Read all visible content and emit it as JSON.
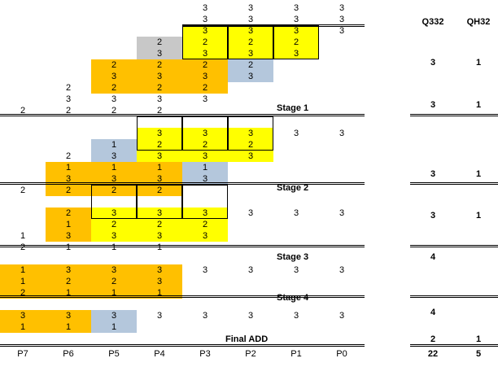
{
  "columns": [
    "P7",
    "P6",
    "P5",
    "P4",
    "P3",
    "P2",
    "P1",
    "P0"
  ],
  "right_headers": [
    "Q332",
    "QH32"
  ],
  "rows": [
    [
      [
        "",
        "n"
      ],
      [
        "",
        "n"
      ],
      [
        "",
        "n"
      ],
      [
        "",
        "n"
      ],
      [
        "3",
        "n"
      ],
      [
        "3",
        "n"
      ],
      [
        "3",
        "n"
      ],
      [
        "3",
        "n"
      ]
    ],
    [
      [
        "",
        "n"
      ],
      [
        "",
        "n"
      ],
      [
        "",
        "n"
      ],
      [
        "",
        "n"
      ],
      [
        "3",
        "n"
      ],
      [
        "3",
        "n"
      ],
      [
        "3",
        "n"
      ],
      [
        "3",
        "n"
      ]
    ],
    [
      [
        "",
        "n"
      ],
      [
        "",
        "n"
      ],
      [
        "",
        "n"
      ],
      [
        "",
        "n"
      ],
      [
        "3",
        "y"
      ],
      [
        "3",
        "y"
      ],
      [
        "3",
        "y"
      ],
      [
        "3",
        "n"
      ]
    ],
    [
      [
        "",
        "n"
      ],
      [
        "",
        "n"
      ],
      [
        "",
        "n"
      ],
      [
        "2",
        "g"
      ],
      [
        "2",
        "y"
      ],
      [
        "2",
        "y"
      ],
      [
        "2",
        "y"
      ],
      [
        "",
        "n"
      ]
    ],
    [
      [
        "",
        "n"
      ],
      [
        "",
        "n"
      ],
      [
        "",
        "n"
      ],
      [
        "3",
        "g"
      ],
      [
        "3",
        "y"
      ],
      [
        "3",
        "y"
      ],
      [
        "3",
        "y"
      ],
      [
        "",
        "n"
      ]
    ],
    [
      [
        "",
        "n"
      ],
      [
        "",
        "n"
      ],
      [
        "2",
        "o"
      ],
      [
        "2",
        "o"
      ],
      [
        "2",
        "o"
      ],
      [
        "2",
        "b"
      ],
      [
        "",
        "n"
      ],
      [
        "",
        "n"
      ]
    ],
    [
      [
        "",
        "n"
      ],
      [
        "",
        "n"
      ],
      [
        "3",
        "o"
      ],
      [
        "3",
        "o"
      ],
      [
        "3",
        "o"
      ],
      [
        "3",
        "b"
      ],
      [
        "",
        "n"
      ],
      [
        "",
        "n"
      ]
    ],
    [
      [
        "",
        "n"
      ],
      [
        "2",
        "n"
      ],
      [
        "2",
        "o"
      ],
      [
        "2",
        "o"
      ],
      [
        "2",
        "o"
      ],
      [
        "",
        "n"
      ],
      [
        "",
        "n"
      ],
      [
        "",
        "n"
      ]
    ],
    [
      [
        "",
        "n"
      ],
      [
        "3",
        "n"
      ],
      [
        "3",
        "n"
      ],
      [
        "3",
        "n"
      ],
      [
        "3",
        "n"
      ],
      [
        "",
        "n"
      ],
      [
        "",
        "n"
      ],
      [
        "",
        "n"
      ]
    ],
    [
      [
        "2",
        "n"
      ],
      [
        "2",
        "n"
      ],
      [
        "2",
        "n"
      ],
      [
        "2",
        "n"
      ],
      [
        "",
        "n"
      ],
      [
        "",
        "n"
      ],
      [
        "",
        "n"
      ],
      [
        "",
        "n"
      ]
    ],
    [
      [
        "",
        "n"
      ],
      [
        "",
        "n"
      ],
      [
        "",
        "n"
      ],
      [
        "3",
        "y"
      ],
      [
        "3",
        "y"
      ],
      [
        "3",
        "y"
      ],
      [
        "3",
        "n"
      ],
      [
        "3",
        "n"
      ]
    ],
    [
      [
        "",
        "n"
      ],
      [
        "",
        "n"
      ],
      [
        "1",
        "b"
      ],
      [
        "2",
        "y"
      ],
      [
        "2",
        "y"
      ],
      [
        "2",
        "y"
      ],
      [
        "",
        "n"
      ],
      [
        "",
        "n"
      ]
    ],
    [
      [
        "",
        "n"
      ],
      [
        "2",
        "n"
      ],
      [
        "3",
        "b"
      ],
      [
        "3",
        "y"
      ],
      [
        "3",
        "y"
      ],
      [
        "3",
        "y"
      ],
      [
        "",
        "n"
      ],
      [
        "",
        "n"
      ]
    ],
    [
      [
        "",
        "n"
      ],
      [
        "1",
        "o"
      ],
      [
        "1",
        "o"
      ],
      [
        "1",
        "o"
      ],
      [
        "1",
        "b"
      ],
      [
        "",
        "n"
      ],
      [
        "",
        "n"
      ],
      [
        "",
        "n"
      ]
    ],
    [
      [
        "",
        "n"
      ],
      [
        "3",
        "o"
      ],
      [
        "3",
        "o"
      ],
      [
        "3",
        "o"
      ],
      [
        "3",
        "b"
      ],
      [
        "",
        "n"
      ],
      [
        "",
        "n"
      ],
      [
        "",
        "n"
      ]
    ],
    [
      [
        "2",
        "n"
      ],
      [
        "2",
        "o"
      ],
      [
        "2",
        "o"
      ],
      [
        "2",
        "o"
      ],
      [
        "",
        "n"
      ],
      [
        "",
        "n"
      ],
      [
        "",
        "n"
      ],
      [
        "",
        "n"
      ]
    ],
    [
      [
        "",
        "n"
      ],
      [
        "2",
        "o"
      ],
      [
        "3",
        "y"
      ],
      [
        "3",
        "y"
      ],
      [
        "3",
        "y"
      ],
      [
        "3",
        "n"
      ],
      [
        "3",
        "n"
      ],
      [
        "3",
        "n"
      ]
    ],
    [
      [
        "",
        "n"
      ],
      [
        "1",
        "o"
      ],
      [
        "2",
        "y"
      ],
      [
        "2",
        "y"
      ],
      [
        "2",
        "y"
      ],
      [
        "",
        "n"
      ],
      [
        "",
        "n"
      ],
      [
        "",
        "n"
      ]
    ],
    [
      [
        "1",
        "n"
      ],
      [
        "3",
        "o"
      ],
      [
        "3",
        "y"
      ],
      [
        "3",
        "y"
      ],
      [
        "3",
        "y"
      ],
      [
        "",
        "n"
      ],
      [
        "",
        "n"
      ],
      [
        "",
        "n"
      ]
    ],
    [
      [
        "2",
        "n"
      ],
      [
        "1",
        "n"
      ],
      [
        "1",
        "n"
      ],
      [
        "1",
        "n"
      ],
      [
        "",
        "n"
      ],
      [
        "",
        "n"
      ],
      [
        "",
        "n"
      ],
      [
        "",
        "n"
      ]
    ],
    [
      [
        "1",
        "o"
      ],
      [
        "3",
        "o"
      ],
      [
        "3",
        "o"
      ],
      [
        "3",
        "o"
      ],
      [
        "3",
        "n"
      ],
      [
        "3",
        "n"
      ],
      [
        "3",
        "n"
      ],
      [
        "3",
        "n"
      ]
    ],
    [
      [
        "1",
        "o"
      ],
      [
        "2",
        "o"
      ],
      [
        "2",
        "o"
      ],
      [
        "3",
        "o"
      ],
      [
        "",
        "n"
      ],
      [
        "",
        "n"
      ],
      [
        "",
        "n"
      ],
      [
        "",
        "n"
      ]
    ],
    [
      [
        "2",
        "o"
      ],
      [
        "1",
        "o"
      ],
      [
        "1",
        "o"
      ],
      [
        "1",
        "o"
      ],
      [
        "",
        "n"
      ],
      [
        "",
        "n"
      ],
      [
        "",
        "n"
      ],
      [
        "",
        "n"
      ]
    ],
    [
      [
        "3",
        "o"
      ],
      [
        "3",
        "o"
      ],
      [
        "3",
        "b"
      ],
      [
        "3",
        "n"
      ],
      [
        "3",
        "n"
      ],
      [
        "3",
        "n"
      ],
      [
        "3",
        "n"
      ],
      [
        "3",
        "n"
      ]
    ],
    [
      [
        "1",
        "o"
      ],
      [
        "1",
        "o"
      ],
      [
        "1",
        "b"
      ],
      [
        "",
        "n"
      ],
      [
        "",
        "n"
      ],
      [
        "",
        "n"
      ],
      [
        "",
        "n"
      ],
      [
        "",
        "n"
      ]
    ]
  ],
  "stage_labels": [
    {
      "row": 7,
      "text": "Stage 1"
    },
    {
      "row": 14,
      "text": "Stage 2"
    },
    {
      "row": 20,
      "text": "Stage 3"
    },
    {
      "row": 26,
      "text": "Stage 4"
    },
    {
      "row": 31,
      "text": "Final ADD"
    }
  ],
  "right_values": [
    {
      "row": 3,
      "q332": "3",
      "qh32": "1"
    },
    {
      "row": 7,
      "q332": "3",
      "qh32": "1"
    },
    {
      "row": 13,
      "q332": "3",
      "qh32": "1"
    },
    {
      "row": 17,
      "q332": "3",
      "qh32": "1"
    },
    {
      "row": 20,
      "q332": "4",
      "qh32": ""
    },
    {
      "row": 26,
      "q332": "4",
      "qh32": ""
    },
    {
      "row": 31,
      "q332": "2",
      "qh32": "1"
    }
  ],
  "totals": {
    "q332": "22",
    "qh32": "5"
  },
  "colors": {
    "yellow": "#ffff00",
    "orange": "#ffc000",
    "blue": "#b4c7dc",
    "gray": "#c8c8c8"
  }
}
